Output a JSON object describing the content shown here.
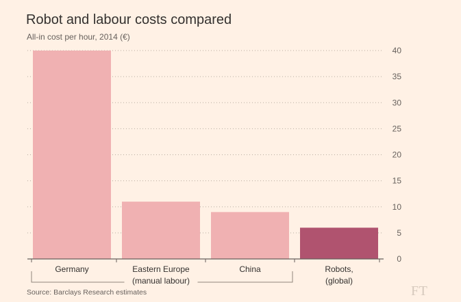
{
  "chart_data": {
    "type": "bar",
    "title": "Robot and labour costs compared",
    "subtitle": "All-in cost per hour, 2014 (€)",
    "categories": [
      "Germany",
      "Eastern Europe",
      "China",
      "Robots,"
    ],
    "category_line2": [
      "",
      "(manual labour)",
      "",
      "(global)"
    ],
    "values": [
      40,
      11,
      9,
      6
    ],
    "bar_colors": [
      "#f0b1b2",
      "#f0b1b2",
      "#f0b1b2",
      "#b0536f"
    ],
    "ylim": [
      0,
      40
    ],
    "yticks": [
      0,
      5,
      10,
      15,
      20,
      25,
      30,
      35,
      40
    ],
    "yaxis_side": "right",
    "grid": true,
    "source": "Source: Barclays Research estimates"
  },
  "brand": {
    "logo": "FT"
  },
  "colors": {
    "background": "#fff1e5",
    "grid": "#b8aca0",
    "text": "#33302e"
  }
}
